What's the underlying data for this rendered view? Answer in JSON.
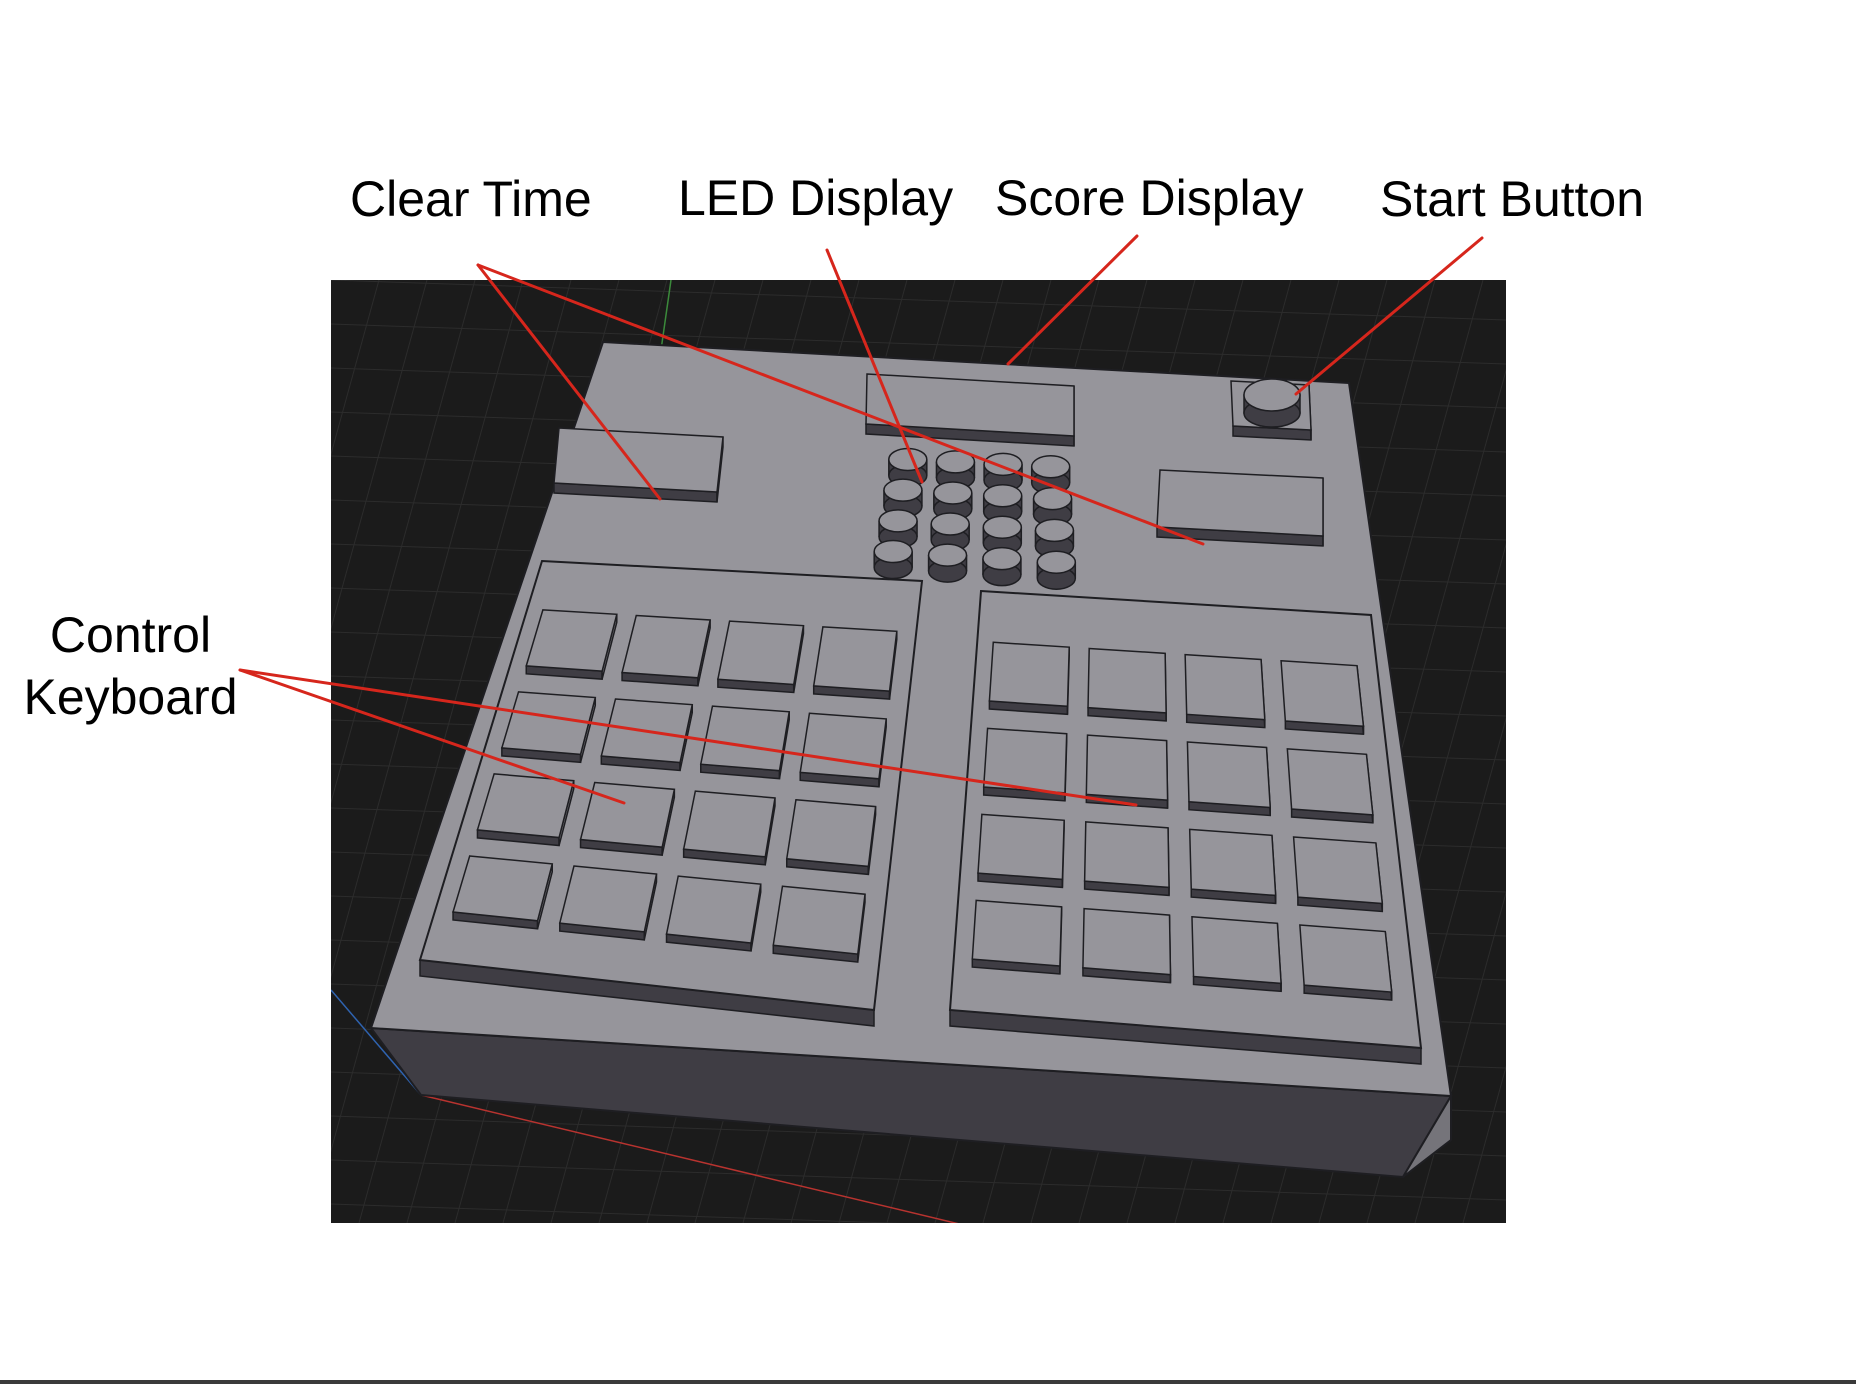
{
  "callouts": {
    "clear_time": "Clear Time",
    "led_display": "LED Display",
    "score_display": "Score Display",
    "start_button": "Start Button",
    "control_keyboard_line1": "Control",
    "control_keyboard_line2": "Keyboard"
  },
  "colors": {
    "viewport_background": "#1b1b1b",
    "grid_line": "#2c2c2c",
    "device_top": "#96959b",
    "device_front": "#3f3d44",
    "device_right": "#75747a",
    "edge": "#1e1e22",
    "callout_line": "#d6261c",
    "axis_x": "#b8332f",
    "axis_y": "#3b8a3b",
    "axis_z": "#2f63b0"
  },
  "components": {
    "led_buttons": {
      "rows": 4,
      "cols": 4,
      "shape": "round"
    },
    "left_keypad": {
      "rows": 4,
      "cols": 4,
      "shape": "square"
    },
    "right_keypad": {
      "rows": 4,
      "cols": 4,
      "shape": "square"
    }
  }
}
